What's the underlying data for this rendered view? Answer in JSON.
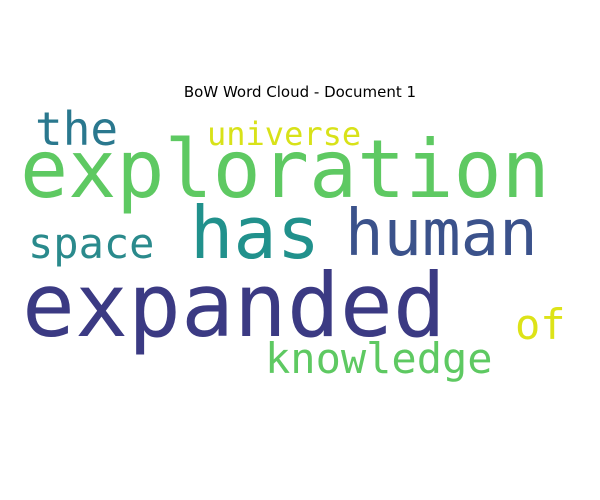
{
  "title": "BoW Word Cloud - Document 1",
  "words": {
    "exploration": {
      "text": "exploration",
      "color": "#5ec962"
    },
    "expanded": {
      "text": "expanded",
      "color": "#3b3a83"
    },
    "has": {
      "text": "has",
      "color": "#21918c"
    },
    "human": {
      "text": "human",
      "color": "#3b528b"
    },
    "the": {
      "text": "the",
      "color": "#2a788e"
    },
    "universe": {
      "text": "universe",
      "color": "#d8e219"
    },
    "space": {
      "text": "space",
      "color": "#2a8a8c"
    },
    "of": {
      "text": "of",
      "color": "#dde318"
    },
    "knowledge": {
      "text": "knowledge",
      "color": "#5ec962"
    }
  }
}
